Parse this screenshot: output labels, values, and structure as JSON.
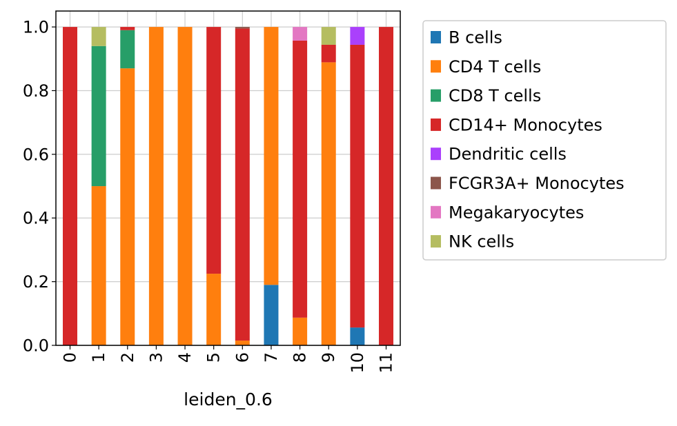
{
  "chart_data": {
    "type": "bar",
    "stacked": true,
    "title": "",
    "xlabel": "leiden_0.6",
    "ylabel": "",
    "ylim": [
      0,
      1.05
    ],
    "yticks": [
      "0.0",
      "0.2",
      "0.4",
      "0.6",
      "0.8",
      "1.0"
    ],
    "grid": true,
    "legend_position": "outside-right",
    "categories": [
      "0",
      "1",
      "2",
      "3",
      "4",
      "5",
      "6",
      "7",
      "8",
      "9",
      "10",
      "11"
    ],
    "series": [
      {
        "name": "B cells",
        "color": "#1f77b4",
        "values": [
          0,
          0,
          0,
          0,
          0,
          0,
          0,
          0.19,
          0,
          0,
          0.056,
          0
        ]
      },
      {
        "name": "CD4 T cells",
        "color": "#ff7f0e",
        "values": [
          0,
          0.5,
          0.87,
          1.0,
          1.0,
          0.225,
          0.015,
          0.81,
          0.087,
          0.889,
          0,
          0
        ]
      },
      {
        "name": "CD8 T cells",
        "color": "#279e68",
        "values": [
          0,
          0.44,
          0.12,
          0,
          0,
          0,
          0,
          0,
          0,
          0,
          0,
          0
        ]
      },
      {
        "name": "CD14+ Monocytes",
        "color": "#d62728",
        "values": [
          1.0,
          0,
          0.01,
          0,
          0,
          0.775,
          0.98,
          0,
          0.87,
          0.055,
          0.888,
          1.0
        ]
      },
      {
        "name": "Dendritic cells",
        "color": "#aa40fc",
        "values": [
          0,
          0,
          0,
          0,
          0,
          0,
          0,
          0,
          0,
          0,
          0.056,
          0
        ]
      },
      {
        "name": "FCGR3A+ Monocytes",
        "color": "#8c564b",
        "values": [
          0,
          0,
          0,
          0,
          0,
          0,
          0.005,
          0,
          0,
          0,
          0,
          0
        ]
      },
      {
        "name": "Megakaryocytes",
        "color": "#e377c2",
        "values": [
          0,
          0,
          0,
          0,
          0,
          0,
          0,
          0,
          0.043,
          0,
          0,
          0
        ]
      },
      {
        "name": "NK cells",
        "color": "#b5bd61",
        "values": [
          0,
          0.06,
          0,
          0,
          0,
          0,
          0,
          0,
          0,
          0.056,
          0,
          0
        ]
      }
    ]
  }
}
